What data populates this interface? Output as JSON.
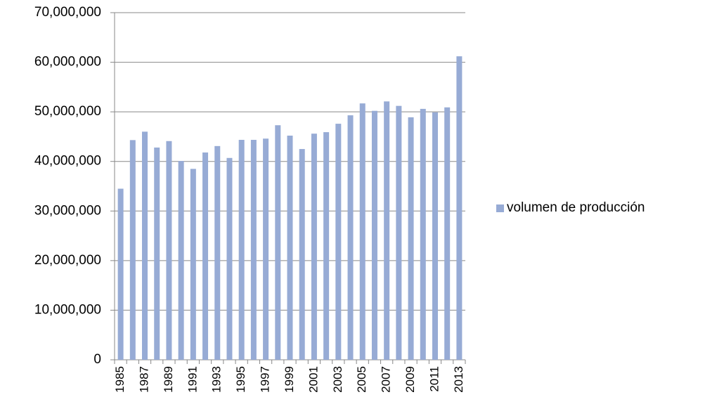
{
  "chart_data": {
    "type": "bar",
    "categories": [
      "1985",
      null,
      "1987",
      null,
      "1989",
      null,
      "1991",
      null,
      "1993",
      null,
      "1995",
      null,
      "1997",
      null,
      "1999",
      null,
      "2001",
      null,
      "2003",
      null,
      "2005",
      null,
      "2007",
      null,
      "2009",
      null,
      "2011",
      null,
      "2013"
    ],
    "series": [
      {
        "name": "volumen de producción",
        "color": "#97abd5",
        "values": [
          34500000,
          44300000,
          46000000,
          42800000,
          44100000,
          40100000,
          38500000,
          41800000,
          43100000,
          40700000,
          44350000,
          44350000,
          44600000,
          47300000,
          45200000,
          42500000,
          45600000,
          45900000,
          47600000,
          49300000,
          51700000,
          50200000,
          52100000,
          51200000,
          48900000,
          50600000,
          49900000,
          50900000,
          61200000
        ]
      }
    ],
    "ylim": [
      0,
      70000000
    ],
    "yticks": [
      0,
      {
        "value": 10000000,
        "label": "10,000,000"
      },
      {
        "value": 20000000,
        "label": "20,000,000"
      },
      {
        "value": 30000000,
        "label": "30,000,000"
      },
      {
        "value": 40000000,
        "label": "40,000,000"
      },
      {
        "value": 50000000,
        "label": "50,000,000"
      },
      {
        "value": 60000000,
        "label": "60,000,000"
      },
      {
        "value": 70000000,
        "label": "70,000,000"
      }
    ],
    "grid": true,
    "legend": "right"
  }
}
